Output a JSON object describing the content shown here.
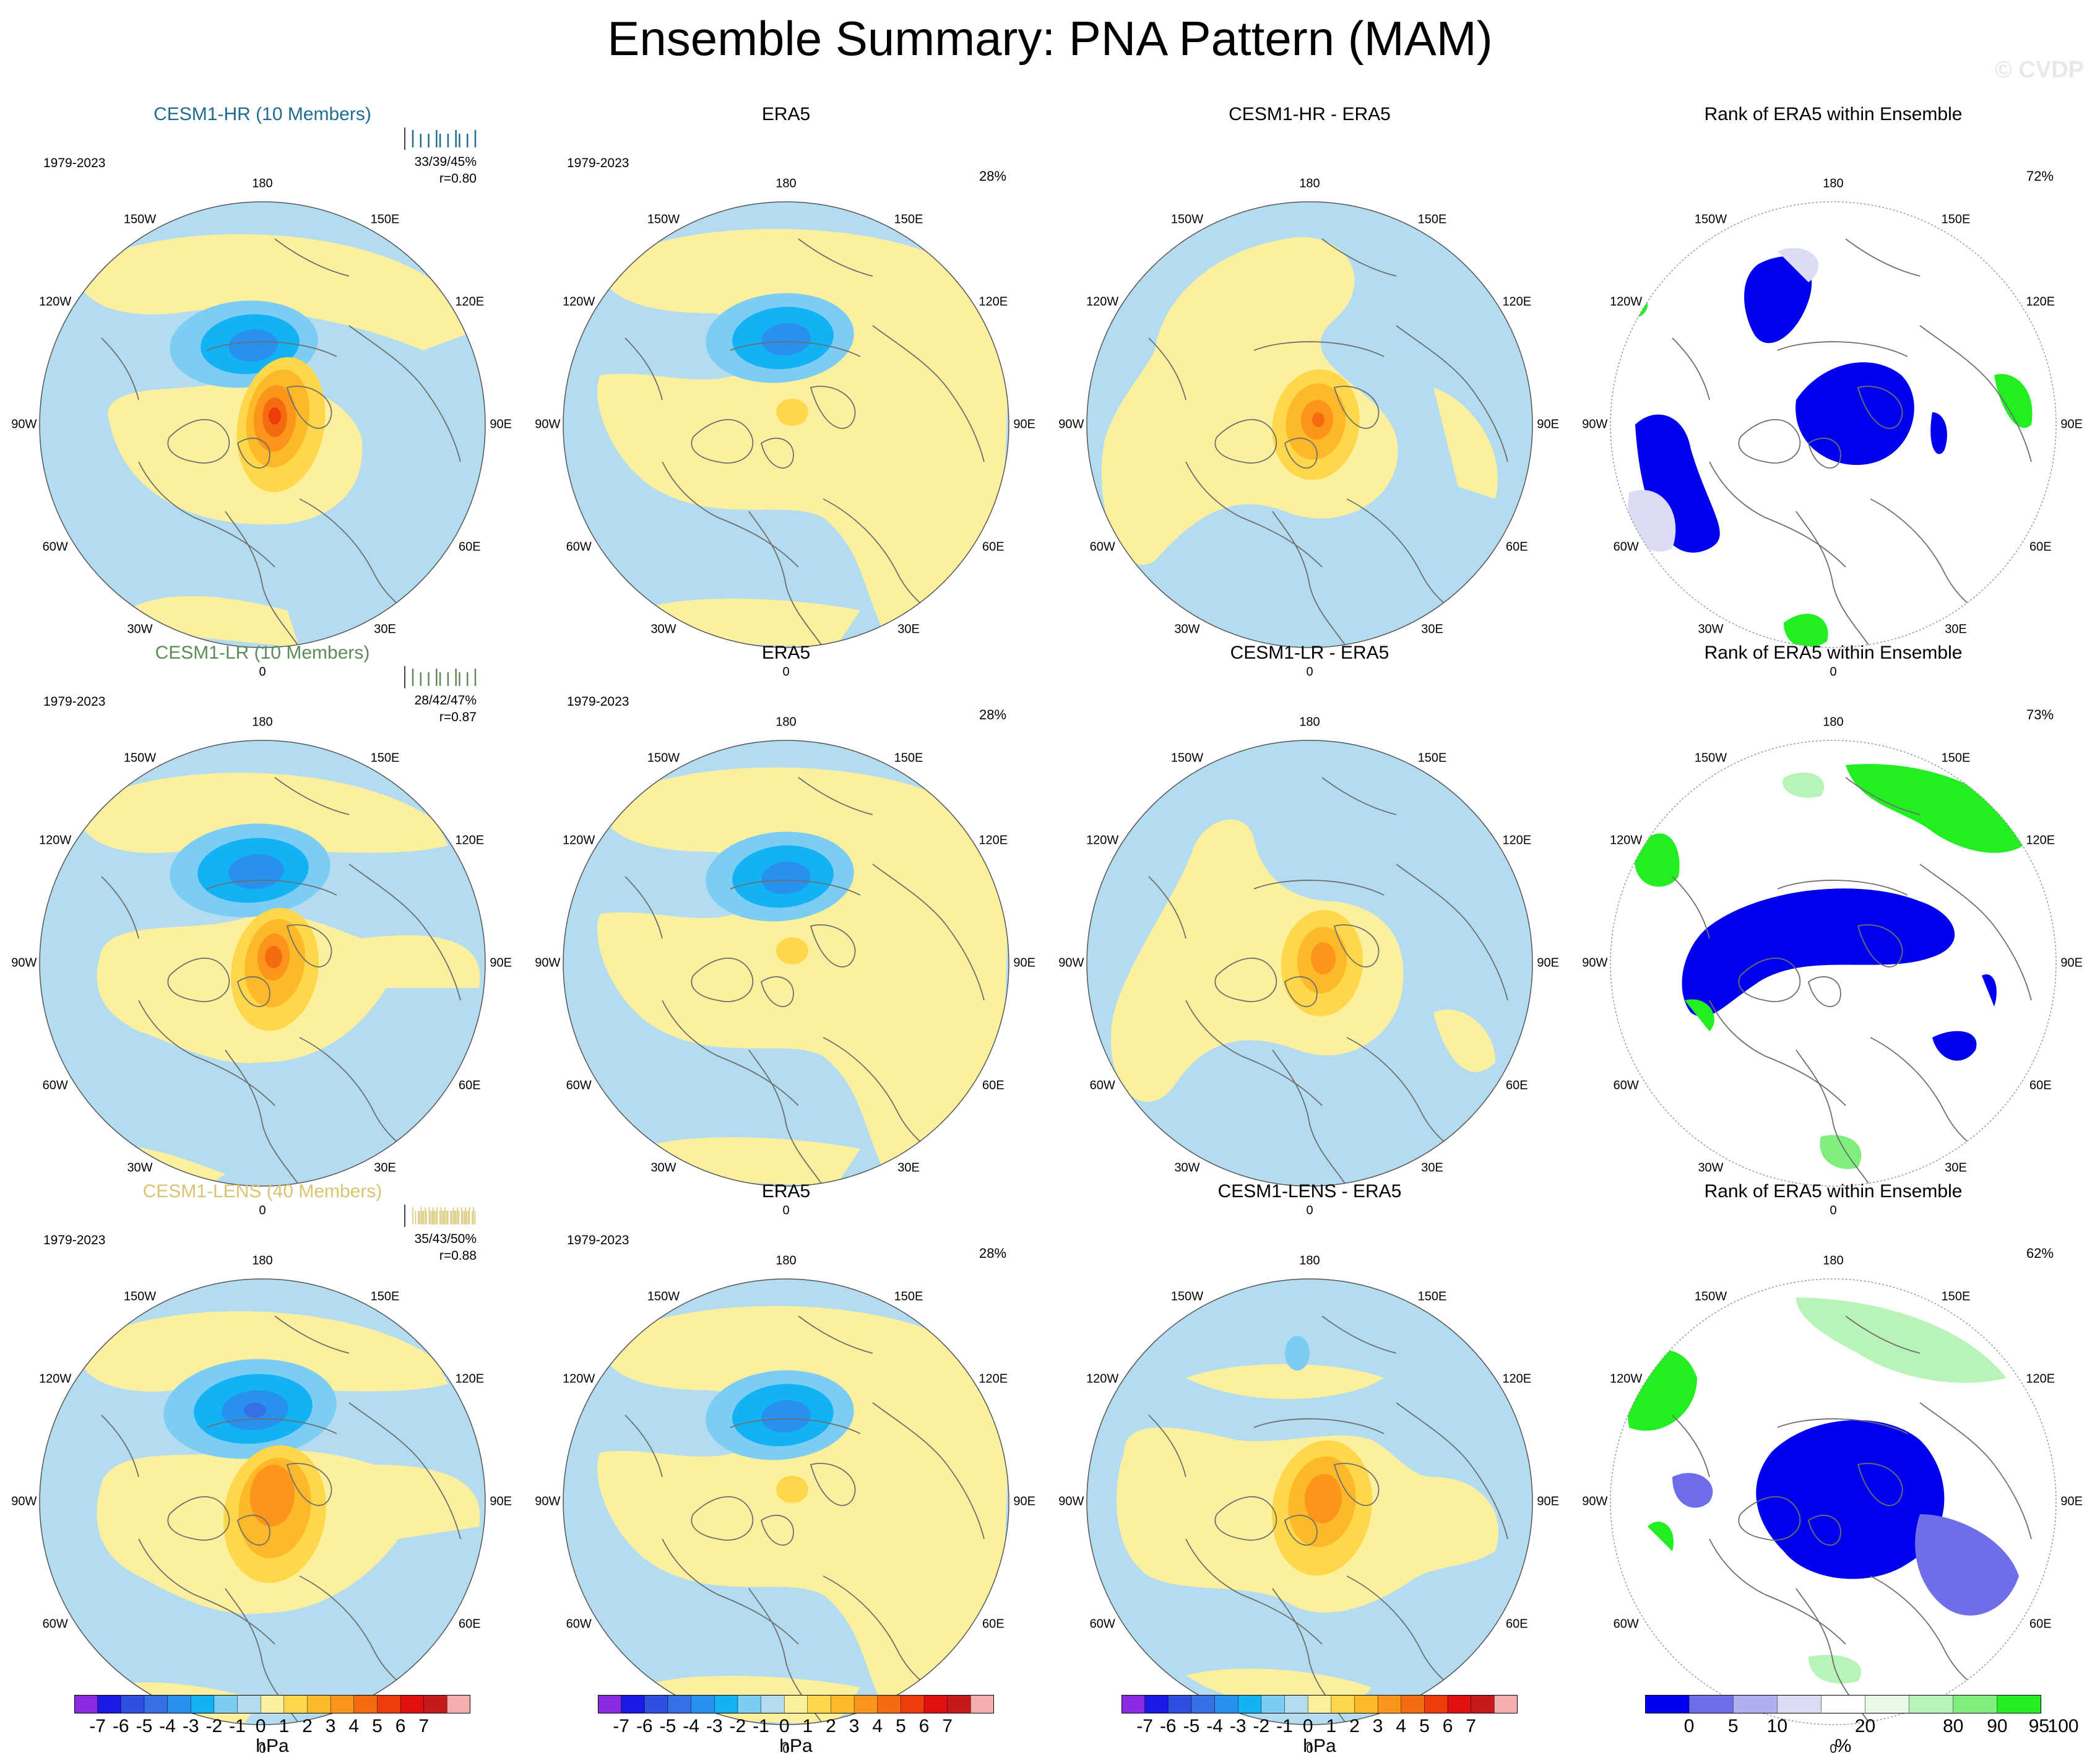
{
  "title": "Ensemble Summary: PNA Pattern (MAM)",
  "copyright": "© CVDP",
  "lon_labels": [
    "180",
    "150E",
    "120E",
    "90E",
    "60E",
    "30E",
    "0",
    "30W",
    "60W",
    "90W",
    "120W",
    "150W"
  ],
  "colors": {
    "ocean_bg": "#b3dcf0",
    "neutral_pos": "#fcf09e",
    "land_line": "#6e6e6e",
    "hr_title": "#1f6c8f",
    "lr_title": "#5e8a58",
    "lens_title": "#d7c572"
  },
  "panels": [
    {
      "title": "CESM1-HR (10 Members)",
      "title_color": "#1f6c8f",
      "period": "1979-2023",
      "stats1": "33/39/45%",
      "stats2": "r=0.80",
      "rug": {
        "ticks": 10,
        "color": "#1f6c8f"
      },
      "kind": "model",
      "low": "strong",
      "high": "strong",
      "pattern": "hr"
    },
    {
      "title": "ERA5",
      "period": "1979-2023",
      "pct": "28%",
      "kind": "obs",
      "pattern": "era"
    },
    {
      "title": "CESM1-HR - ERA5",
      "kind": "diff",
      "pattern": "dhr"
    },
    {
      "title": "Rank of ERA5 within Ensemble",
      "pct": "72%",
      "kind": "rank",
      "pattern": "rhr"
    },
    {
      "title": "CESM1-LR (10 Members)",
      "title_color": "#5e8a58",
      "period": "1979-2023",
      "stats1": "28/42/47%",
      "stats2": "r=0.87",
      "rug": {
        "ticks": 10,
        "color": "#5e8a58"
      },
      "kind": "model",
      "pattern": "lr"
    },
    {
      "title": "ERA5",
      "period": "1979-2023",
      "pct": "28%",
      "kind": "obs",
      "pattern": "era"
    },
    {
      "title": "CESM1-LR - ERA5",
      "kind": "diff",
      "pattern": "dlr"
    },
    {
      "title": "Rank of ERA5 within Ensemble",
      "pct": "73%",
      "kind": "rank",
      "pattern": "rlr"
    },
    {
      "title": "CESM1-LENS (40 Members)",
      "title_color": "#d7c572",
      "period": "1979-2023",
      "stats1": "35/43/50%",
      "stats2": "r=0.88",
      "rug": {
        "ticks": 40,
        "color": "#d7c572"
      },
      "kind": "model",
      "pattern": "lens"
    },
    {
      "title": "ERA5",
      "period": "1979-2023",
      "pct": "28%",
      "kind": "obs",
      "pattern": "era"
    },
    {
      "title": "CESM1-LENS - ERA5",
      "kind": "diff",
      "pattern": "dlens"
    },
    {
      "title": "Rank of ERA5 within Ensemble",
      "pct": "62%",
      "kind": "rank",
      "pattern": "rlens"
    }
  ],
  "chart_data": {
    "type": "heatmap",
    "projection": "north polar stereographic",
    "variable": "PNA Pattern (MAM)",
    "colorbars": [
      {
        "name": "hPa",
        "unit": "hPa",
        "tick_labels": [
          "-7",
          "-6",
          "-5",
          "-4",
          "-3",
          "-2",
          "-1",
          "0",
          "1",
          "2",
          "3",
          "4",
          "5",
          "6",
          "7"
        ],
        "colors": [
          "#8a2be2",
          "#1a1ae6",
          "#2e4fe0",
          "#3770e6",
          "#2891f0",
          "#12b2f5",
          "#7cccf3",
          "#b3dcf0",
          "#fcf09e",
          "#fed84a",
          "#fdb92a",
          "#fb961a",
          "#f56b12",
          "#ee3c0c",
          "#e01010",
          "#c41a1a",
          "#f5aeae"
        ]
      },
      {
        "name": "%",
        "unit": "%",
        "tick_labels": [
          "0",
          "5",
          "10",
          "20",
          "80",
          "90",
          "95",
          "100"
        ],
        "colors": [
          "#0000ee",
          "#6e6ee8",
          "#b0b0f0",
          "#dcdcf7",
          "#ffffff",
          "#e6fae6",
          "#b8f4b8",
          "#7fee7f",
          "#22ee22"
        ]
      }
    ]
  }
}
